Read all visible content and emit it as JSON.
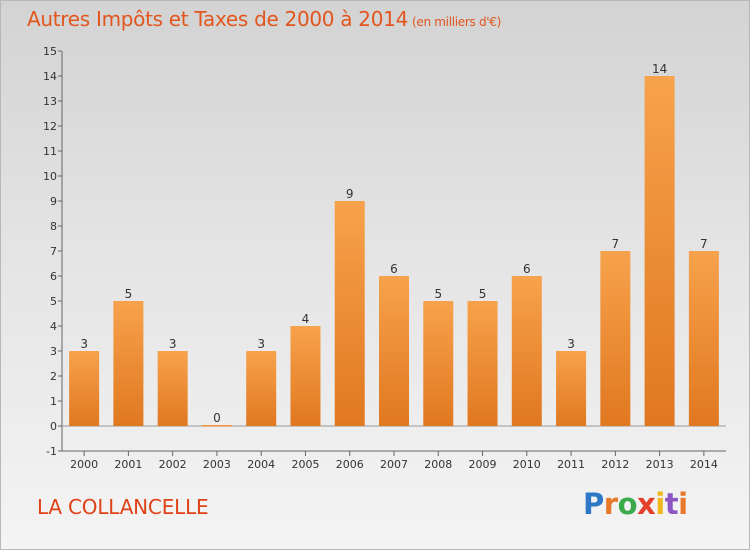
{
  "title": "Autres Impôts et Taxes de 2000 à 2014",
  "unit_note": "(en milliers d'€)",
  "commune": "LA COLLANCELLE",
  "logo_text": "Proxiti",
  "colors": {
    "bar_top": "#f7a24c",
    "bar_bottom": "#e07820",
    "title": "#e2561e",
    "commune": "#e04218"
  },
  "chart_data": {
    "type": "bar",
    "title": "Autres Impôts et Taxes de 2000 à 2014",
    "subtitle": "(en milliers d'€)",
    "categories": [
      "2000",
      "2001",
      "2002",
      "2003",
      "2004",
      "2005",
      "2006",
      "2007",
      "2008",
      "2009",
      "2010",
      "2011",
      "2012",
      "2013",
      "2014"
    ],
    "values": [
      3,
      5,
      3,
      0,
      3,
      4,
      9,
      6,
      5,
      5,
      6,
      3,
      7,
      14,
      7
    ],
    "ylim": [
      -1,
      15
    ],
    "yticks": [
      -1,
      0,
      1,
      2,
      3,
      4,
      5,
      6,
      7,
      8,
      9,
      10,
      11,
      12,
      13,
      14,
      15
    ],
    "grid": false,
    "data_labels": true
  }
}
